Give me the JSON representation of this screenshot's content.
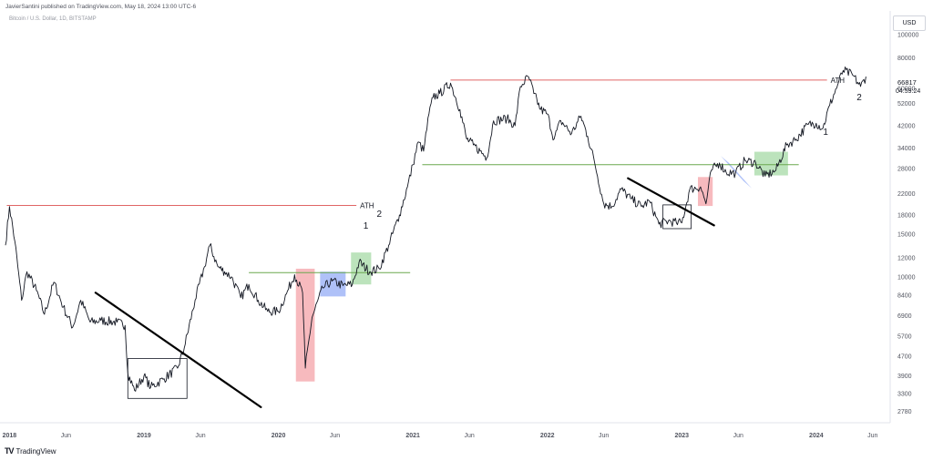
{
  "header": {
    "publisher_line": "JavierSantini published on TradingView.com, May 18, 2024 13:00 UTC-6",
    "symbol_line": "Bitcoin / U.S. Dollar, 1D, BITSTAMP"
  },
  "currency_button": "USD",
  "footer": {
    "logo_glyph": "TV",
    "brand": "TradingView"
  },
  "price_label": {
    "price": "66817",
    "countdown": "04:59:24"
  },
  "chart_data": {
    "type": "line",
    "title": "Bitcoin / U.S. Dollar, 1D, BITSTAMP",
    "yscale": "log",
    "ylim": [
      2500,
      125000
    ],
    "xlim": [
      2017.97,
      2024.55
    ],
    "y_ticks": [
      100000,
      80000,
      60000,
      52000,
      42000,
      34000,
      28000,
      22000,
      18000,
      15000,
      12000,
      10000,
      8400,
      6900,
      5700,
      4700,
      3900,
      3300,
      2780
    ],
    "x_ticks": [
      {
        "label": "2018",
        "x": 2018.0,
        "major": true
      },
      {
        "label": "Jun",
        "x": 2018.42,
        "major": false
      },
      {
        "label": "2019",
        "x": 2019.0,
        "major": true
      },
      {
        "label": "Jun",
        "x": 2019.42,
        "major": false
      },
      {
        "label": "2020",
        "x": 2020.0,
        "major": true
      },
      {
        "label": "Jun",
        "x": 2020.42,
        "major": false
      },
      {
        "label": "2021",
        "x": 2021.0,
        "major": true
      },
      {
        "label": "Jun",
        "x": 2021.42,
        "major": false
      },
      {
        "label": "2022",
        "x": 2022.0,
        "major": true
      },
      {
        "label": "Jun",
        "x": 2022.42,
        "major": false
      },
      {
        "label": "2023",
        "x": 2023.0,
        "major": true
      },
      {
        "label": "Jun",
        "x": 2023.42,
        "major": false
      },
      {
        "label": "2024",
        "x": 2024.0,
        "major": true
      },
      {
        "label": "Jun",
        "x": 2024.42,
        "major": false
      }
    ],
    "last_price": 66817,
    "series": [
      {
        "points": [
          [
            2017.97,
            13500
          ],
          [
            2018.0,
            19500
          ],
          [
            2018.04,
            14000
          ],
          [
            2018.09,
            8000
          ],
          [
            2018.13,
            10500
          ],
          [
            2018.2,
            8800
          ],
          [
            2018.26,
            7000
          ],
          [
            2018.33,
            9500
          ],
          [
            2018.4,
            7500
          ],
          [
            2018.47,
            6200
          ],
          [
            2018.53,
            8000
          ],
          [
            2018.6,
            6500
          ],
          [
            2018.68,
            6600
          ],
          [
            2018.8,
            6500
          ],
          [
            2018.86,
            6300
          ],
          [
            2018.88,
            4000
          ],
          [
            2018.93,
            3400
          ],
          [
            2019.0,
            3900
          ],
          [
            2019.05,
            3500
          ],
          [
            2019.15,
            3800
          ],
          [
            2019.25,
            4200
          ],
          [
            2019.3,
            5100
          ],
          [
            2019.38,
            8000
          ],
          [
            2019.45,
            11000
          ],
          [
            2019.49,
            13500
          ],
          [
            2019.55,
            11000
          ],
          [
            2019.6,
            10500
          ],
          [
            2019.65,
            10000
          ],
          [
            2019.72,
            8200
          ],
          [
            2019.78,
            9300
          ],
          [
            2019.85,
            8000
          ],
          [
            2019.92,
            7200
          ],
          [
            2020.0,
            7200
          ],
          [
            2020.06,
            8500
          ],
          [
            2020.12,
            10200
          ],
          [
            2020.18,
            8600
          ],
          [
            2020.2,
            4200
          ],
          [
            2020.25,
            6800
          ],
          [
            2020.33,
            9000
          ],
          [
            2020.4,
            9600
          ],
          [
            2020.48,
            9200
          ],
          [
            2020.55,
            9300
          ],
          [
            2020.6,
            11500
          ],
          [
            2020.68,
            10500
          ],
          [
            2020.75,
            10800
          ],
          [
            2020.82,
            13500
          ],
          [
            2020.9,
            18000
          ],
          [
            2020.96,
            23500
          ],
          [
            2021.0,
            29000
          ],
          [
            2021.04,
            36000
          ],
          [
            2021.08,
            33000
          ],
          [
            2021.12,
            47000
          ],
          [
            2021.15,
            55000
          ],
          [
            2021.2,
            57000
          ],
          [
            2021.28,
            63000
          ],
          [
            2021.35,
            49000
          ],
          [
            2021.4,
            37000
          ],
          [
            2021.45,
            35000
          ],
          [
            2021.5,
            33000
          ],
          [
            2021.55,
            31000
          ],
          [
            2021.6,
            44000
          ],
          [
            2021.7,
            45000
          ],
          [
            2021.76,
            42000
          ],
          [
            2021.8,
            61000
          ],
          [
            2021.86,
            67000
          ],
          [
            2021.9,
            57000
          ],
          [
            2021.95,
            49000
          ],
          [
            2022.0,
            47000
          ],
          [
            2022.05,
            37000
          ],
          [
            2022.1,
            44000
          ],
          [
            2022.18,
            39000
          ],
          [
            2022.25,
            46000
          ],
          [
            2022.3,
            38000
          ],
          [
            2022.35,
            30000
          ],
          [
            2022.42,
            20000
          ],
          [
            2022.48,
            19500
          ],
          [
            2022.55,
            23000
          ],
          [
            2022.62,
            21000
          ],
          [
            2022.7,
            19500
          ],
          [
            2022.76,
            20500
          ],
          [
            2022.83,
            16500
          ],
          [
            2022.9,
            17000
          ],
          [
            2022.96,
            16700
          ],
          [
            2023.0,
            16700
          ],
          [
            2023.06,
            23000
          ],
          [
            2023.14,
            23500
          ],
          [
            2023.18,
            20000
          ],
          [
            2023.22,
            27500
          ],
          [
            2023.28,
            29500
          ],
          [
            2023.33,
            27000
          ],
          [
            2023.4,
            26800
          ],
          [
            2023.47,
            30200
          ],
          [
            2023.55,
            29500
          ],
          [
            2023.62,
            26000
          ],
          [
            2023.7,
            27500
          ],
          [
            2023.78,
            35000
          ],
          [
            2023.85,
            37000
          ],
          [
            2023.94,
            42500
          ],
          [
            2024.0,
            43000
          ],
          [
            2024.05,
            41000
          ],
          [
            2024.1,
            51000
          ],
          [
            2024.16,
            62000
          ],
          [
            2024.2,
            71000
          ],
          [
            2024.27,
            68000
          ],
          [
            2024.33,
            61000
          ],
          [
            2024.37,
            67000
          ]
        ]
      }
    ],
    "annotations": {
      "horizontal_lines": [
        {
          "label": "ATH",
          "y": 19700,
          "x_start": 2017.98,
          "x_end": 2020.58,
          "color": "#e06666"
        },
        {
          "label": "ATH",
          "y": 64800,
          "x_start": 2021.28,
          "x_end": 2024.08,
          "color": "#e06666"
        },
        {
          "label": "",
          "y": 29000,
          "x_start": 2021.07,
          "x_end": 2023.87,
          "color": "#6aa84f"
        },
        {
          "label": "",
          "y": 10400,
          "x_start": 2019.78,
          "x_end": 2020.98,
          "color": "#6aa84f"
        }
      ],
      "trend_lines": [
        {
          "from": [
            2018.64,
            8600
          ],
          "to": [
            2019.87,
            2900
          ]
        },
        {
          "from": [
            2022.6,
            25500
          ],
          "to": [
            2023.24,
            16300
          ]
        }
      ],
      "boxes": [
        {
          "kind": "red",
          "x0": 2020.13,
          "x1": 2020.27,
          "y0": 3700,
          "y1": 10800
        },
        {
          "kind": "blue",
          "x0": 2020.31,
          "x1": 2020.5,
          "y0": 8300,
          "y1": 10500
        },
        {
          "kind": "green",
          "x0": 2020.54,
          "x1": 2020.69,
          "y0": 9300,
          "y1": 12600
        },
        {
          "kind": "outline",
          "x0": 2018.88,
          "x1": 2019.32,
          "y0": 3150,
          "y1": 4600
        },
        {
          "kind": "red",
          "x0": 2023.12,
          "x1": 2023.23,
          "y0": 19600,
          "y1": 25800
        },
        {
          "kind": "green",
          "x0": 2023.54,
          "x1": 2023.79,
          "y0": 26200,
          "y1": 32800
        },
        {
          "kind": "outline",
          "x0": 2022.86,
          "x1": 2023.07,
          "y0": 15800,
          "y1": 19800
        }
      ],
      "rotated_boxes": [
        {
          "kind": "blue",
          "corners": [
            [
              2023.29,
              31500
            ],
            [
              2023.35,
              29500
            ],
            [
              2023.52,
              23200
            ],
            [
              2023.46,
              24800
            ]
          ]
        }
      ],
      "labels": [
        {
          "text": "1",
          "x": 2020.65,
          "y": 15800
        },
        {
          "text": "2",
          "x": 2020.75,
          "y": 17700
        },
        {
          "text": "1",
          "x": 2024.07,
          "y": 38500
        },
        {
          "text": "2",
          "x": 2024.32,
          "y": 53500
        }
      ]
    }
  }
}
